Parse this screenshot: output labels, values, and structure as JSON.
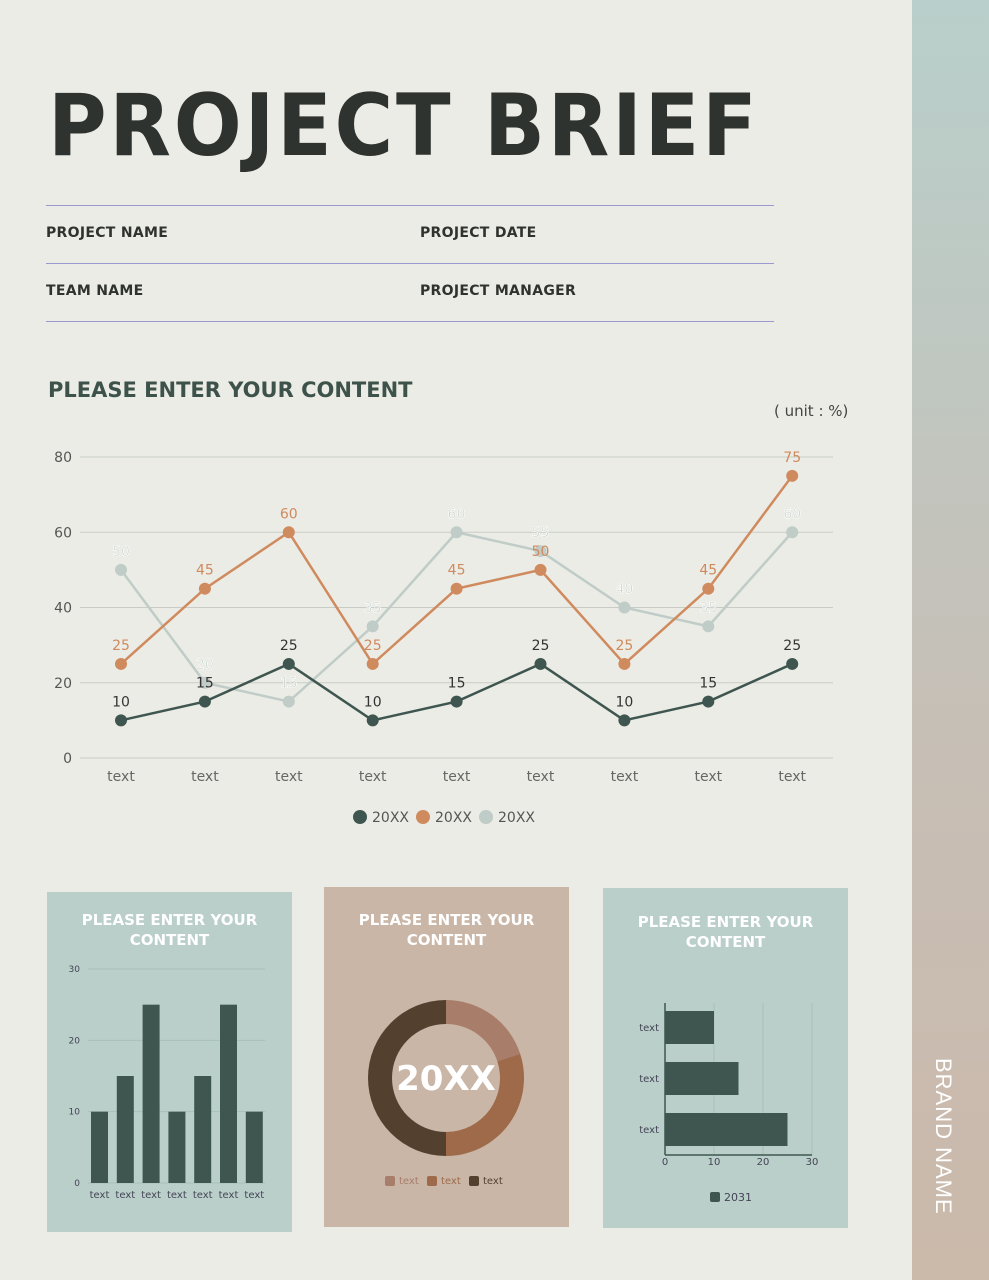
{
  "title": "PROJECT BRIEF",
  "fields": {
    "project_name": "PROJECT NAME",
    "project_date": "PROJECT DATE",
    "team_name": "TEAM NAME",
    "project_manager": "PROJECT MANAGER"
  },
  "section_title": "PLEASE ENTER YOUR CONTENT",
  "unit": "( unit : %)",
  "brand": "BRAND NAME",
  "colors": {
    "dark": "#3f5650",
    "orange": "#cf8a5e",
    "light": "#bfccc7",
    "teal_panel": "#bacfca",
    "tan_panel": "#c9b6a7"
  },
  "chart_data": [
    {
      "type": "line",
      "categories": [
        "text",
        "text",
        "text",
        "text",
        "text",
        "text",
        "text",
        "text",
        "text"
      ],
      "ylim": [
        0,
        80
      ],
      "yticks": [
        0,
        20,
        40,
        60,
        80
      ],
      "grid": true,
      "legend": "bottom",
      "series": [
        {
          "name": "20XX",
          "color": "#3f5650",
          "values": [
            10,
            15,
            25,
            10,
            15,
            25,
            10,
            15,
            25
          ]
        },
        {
          "name": "20XX",
          "color": "#cf8a5e",
          "values": [
            25,
            45,
            60,
            25,
            45,
            50,
            25,
            45,
            75
          ]
        },
        {
          "name": "20XX",
          "color": "#bfccc7",
          "values": [
            50,
            20,
            15,
            35,
            60,
            55,
            40,
            35,
            60
          ]
        }
      ]
    },
    {
      "type": "bar",
      "title": "PLEASE ENTER YOUR CONTENT",
      "categories": [
        "text",
        "text",
        "text",
        "text",
        "text",
        "text",
        "text"
      ],
      "values": [
        10,
        15,
        25,
        10,
        15,
        25,
        10
      ],
      "ylim": [
        0,
        30
      ],
      "yticks": [
        0,
        10,
        20,
        30
      ]
    },
    {
      "type": "pie",
      "title": "PLEASE ENTER YOUR CONTENT",
      "center_label": "20XX",
      "labels": [
        "text",
        "text",
        "text"
      ],
      "values": [
        20,
        30,
        50
      ],
      "colors": [
        "#a87d6a",
        "#9e6a4a",
        "#54402f"
      ]
    },
    {
      "type": "bar",
      "orientation": "horizontal",
      "title": "PLEASE ENTER YOUR CONTENT",
      "categories": [
        "text",
        "text",
        "text"
      ],
      "values": [
        10,
        15,
        25
      ],
      "xlim": [
        0,
        30
      ],
      "xticks": [
        0,
        10,
        20,
        30
      ],
      "legend": "2031"
    }
  ]
}
